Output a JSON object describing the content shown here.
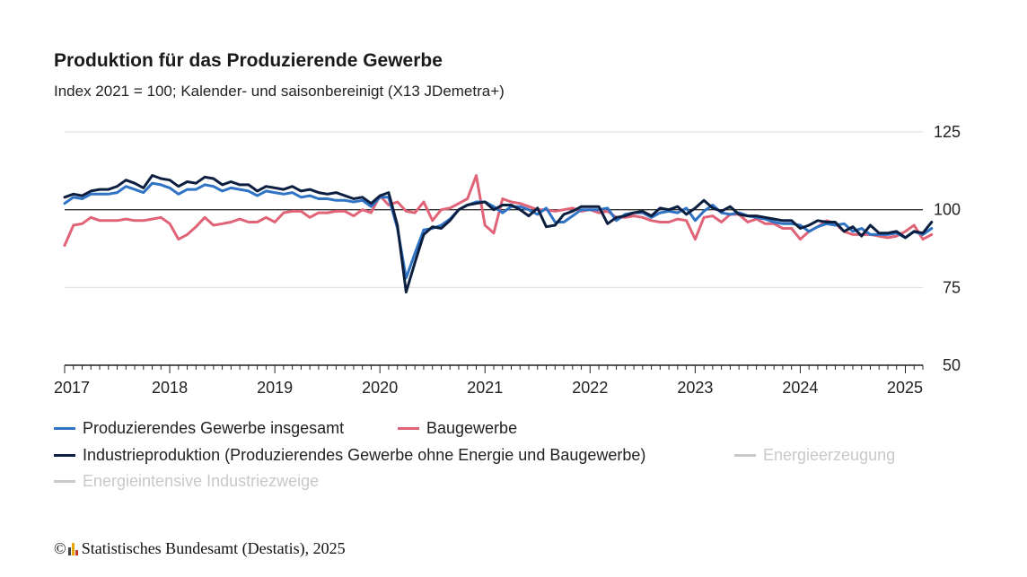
{
  "chart_data": {
    "type": "line",
    "title": "Produktion für das Produzierende Gewerbe",
    "subtitle": "Index 2021 = 100; Kalender- und saisonbereinigt (X13 JDemetra+)",
    "x_start": "2017-01",
    "x_end": "2025-03",
    "x_tick_labels": [
      "2017",
      "2018",
      "2019",
      "2020",
      "2021",
      "2022",
      "2023",
      "2024",
      "2025"
    ],
    "y_ticks": [
      50,
      75,
      100,
      125
    ],
    "ylim": [
      50,
      125
    ],
    "y_axis_position": "right",
    "reference_line": 100,
    "grid": true,
    "series": [
      {
        "name": "Produzierendes Gewerbe insgesamt",
        "color": "#2f73c5",
        "active": true,
        "values": [
          102,
          104,
          103.5,
          105,
          105,
          105,
          105.5,
          107.5,
          106.5,
          105.5,
          108.5,
          108,
          107,
          105,
          106.5,
          106.5,
          108,
          107.5,
          106,
          107,
          106.5,
          106,
          104.5,
          106,
          105.5,
          105,
          105.5,
          104,
          104.5,
          103.5,
          103.5,
          103,
          103,
          102.5,
          103,
          101,
          104,
          104,
          94,
          78,
          86,
          93.5,
          94,
          95,
          97,
          100,
          101.5,
          102.5,
          102.5,
          101,
          99,
          101,
          101,
          100,
          98.5,
          100.5,
          96,
          96,
          98,
          100,
          100,
          100,
          100.5,
          96.5,
          98.5,
          99,
          99,
          97.5,
          99,
          99.5,
          99,
          100.5,
          96.5,
          99.5,
          101.5,
          99,
          98.5,
          99,
          98,
          97.5,
          97,
          96,
          95.5,
          95.5,
          95,
          93,
          94.5,
          95.5,
          95,
          95.5,
          93,
          94,
          92,
          92,
          92,
          92.5,
          91,
          93,
          92,
          94
        ]
      },
      {
        "name": "Baugewerbe",
        "color": "#e06377",
        "active": true,
        "values": [
          88.5,
          95,
          95.5,
          97.5,
          96.5,
          96.5,
          96.5,
          97,
          96.5,
          96.5,
          97,
          97.5,
          95.5,
          90.5,
          92,
          94.5,
          97.5,
          95,
          95.5,
          96,
          97,
          96,
          96,
          97.5,
          96,
          99,
          99.5,
          99.5,
          97.5,
          99,
          99,
          99.5,
          99.5,
          98,
          100,
          99,
          104.5,
          101.5,
          102.5,
          99.5,
          99,
          102.5,
          96.5,
          100,
          100.5,
          102,
          103.5,
          111,
          95,
          92.5,
          103.5,
          102.5,
          102,
          101,
          100,
          100,
          99.5,
          100,
          100.5,
          99.5,
          100,
          99,
          99.5,
          97.5,
          97.5,
          98,
          97.5,
          96.5,
          96,
          96,
          97,
          96.5,
          90.5,
          97.5,
          98,
          96,
          98.5,
          98.5,
          96,
          97,
          95.5,
          95.5,
          94,
          94,
          90.5,
          93,
          94.5,
          96.5,
          95.5,
          93,
          92,
          92,
          92,
          91.5,
          91,
          91.5,
          93,
          95,
          90.5,
          92
        ]
      },
      {
        "name": "Industrieproduktion (Produzierendes Gewerbe ohne Energie und Baugewerbe)",
        "color": "#0d1f40",
        "active": true,
        "values": [
          104,
          105,
          104.5,
          106,
          106.5,
          106.5,
          107.5,
          109.5,
          108.5,
          107,
          111,
          110,
          109.5,
          107.5,
          109,
          108.5,
          110.5,
          110,
          108,
          109,
          108,
          108,
          106,
          107.5,
          107,
          106.5,
          107.5,
          106,
          106.5,
          105.5,
          105,
          105.5,
          104.5,
          103.5,
          104,
          102,
          104.5,
          105.5,
          95,
          73.5,
          83,
          92,
          94.5,
          94,
          96.5,
          100,
          101.5,
          102,
          102.5,
          100,
          101.5,
          101.5,
          100,
          98,
          100.5,
          94.5,
          95,
          98.5,
          99.5,
          101,
          101,
          101,
          95.5,
          97.5,
          98,
          99,
          99.5,
          98,
          100.5,
          100,
          101,
          98.5,
          100.5,
          103,
          100.5,
          99.5,
          101,
          98.5,
          98,
          98,
          97.5,
          97,
          96.5,
          96.5,
          94,
          95,
          96.5,
          96,
          96,
          93,
          94.5,
          91.5,
          95,
          92.5,
          92.5,
          93,
          91,
          93,
          92.5,
          96
        ]
      },
      {
        "name": "Energieerzeugung",
        "color": "#c8c8c8",
        "active": false
      },
      {
        "name": "Energieintensive Industriezweige",
        "color": "#c8c8c8",
        "active": false
      }
    ]
  },
  "footer": {
    "copyright_symbol": "©",
    "text": "Statistisches Bundesamt (Destatis), 2025"
  },
  "colors": {
    "logo_bars": [
      "#444444",
      "#e8a800",
      "#c0392b"
    ]
  }
}
